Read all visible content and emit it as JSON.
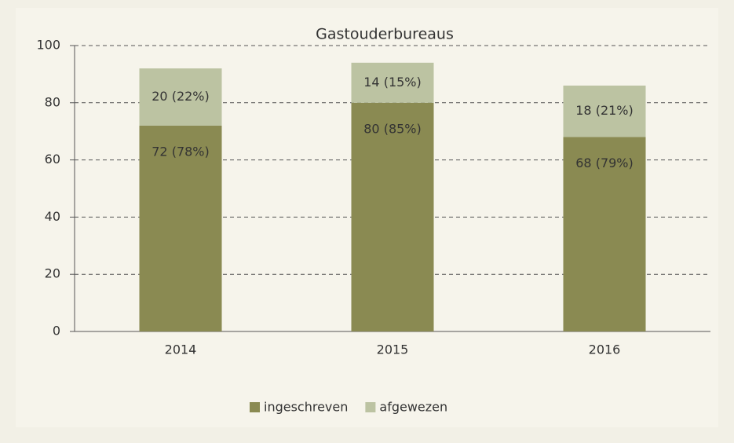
{
  "chart_data": {
    "type": "stacked_bar",
    "title": "Gastouderbureaus",
    "categories": [
      "2014",
      "2015",
      "2016"
    ],
    "series": [
      {
        "name": "ingeschreven",
        "color": "#8a8a52",
        "values": [
          72,
          80,
          68
        ],
        "value_labels": [
          "72 (78%)",
          "80 (85%)",
          "68 (79%)"
        ]
      },
      {
        "name": "afgewezen",
        "color": "#bcc3a2",
        "values": [
          20,
          14,
          18
        ],
        "value_labels": [
          "20 (22%)",
          "14 (15%)",
          "18 (21%)"
        ]
      }
    ],
    "ylim": [
      0,
      100
    ],
    "yticks": [
      0,
      20,
      40,
      60,
      80,
      100
    ],
    "grid": true,
    "legend": "bottom"
  }
}
